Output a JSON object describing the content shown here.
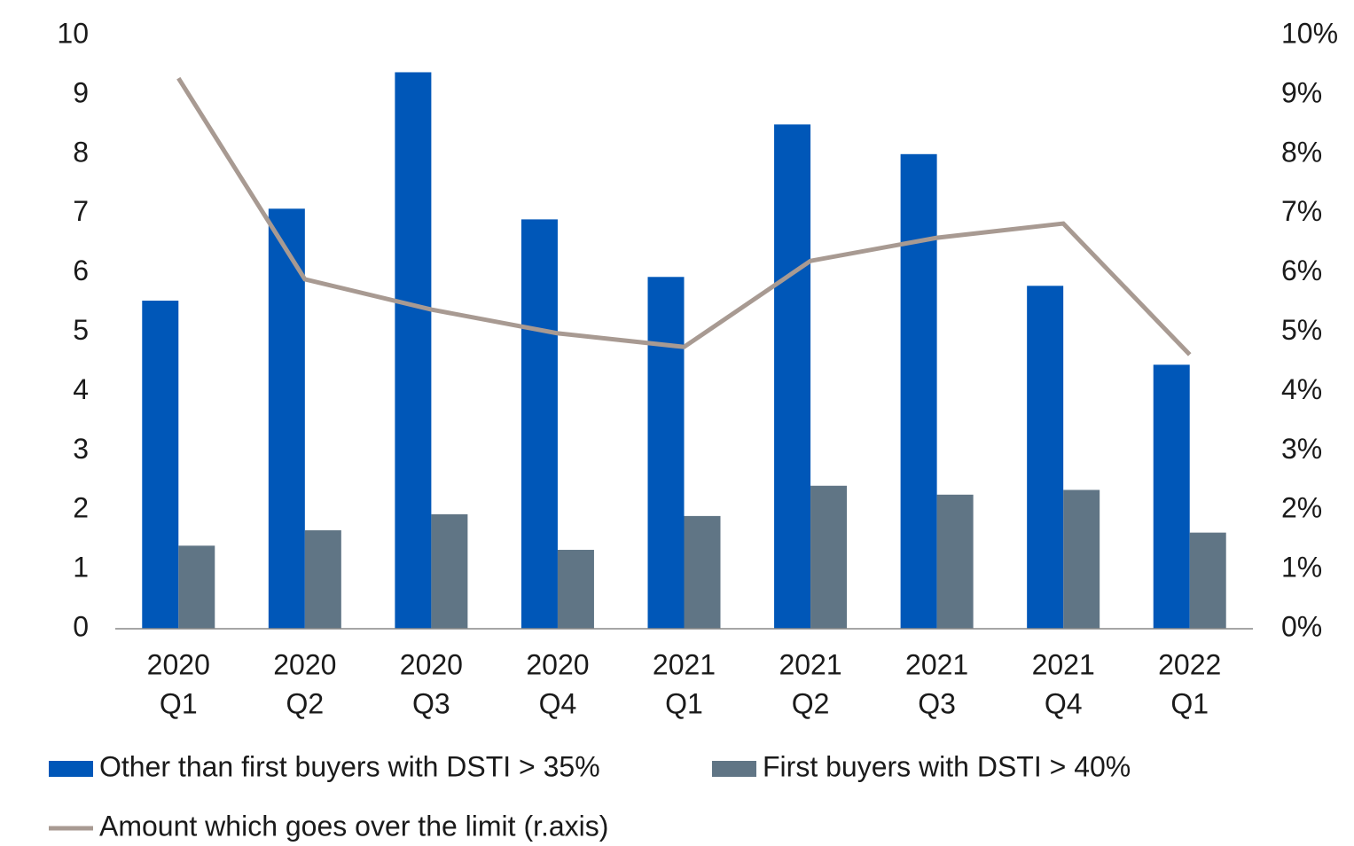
{
  "chart_data": {
    "type": "bar_line",
    "categories": [
      [
        "2020",
        "Q1"
      ],
      [
        "2020",
        "Q2"
      ],
      [
        "2020",
        "Q3"
      ],
      [
        "2020",
        "Q4"
      ],
      [
        "2021",
        "Q1"
      ],
      [
        "2021",
        "Q2"
      ],
      [
        "2021",
        "Q3"
      ],
      [
        "2021",
        "Q4"
      ],
      [
        "2022",
        "Q1"
      ]
    ],
    "series": [
      {
        "name": "Other than first buyers with DSTI > 35%",
        "color": "#0057b8",
        "type": "bar",
        "values": [
          5.53,
          7.08,
          9.38,
          6.9,
          5.93,
          8.5,
          8.0,
          5.78,
          4.45
        ]
      },
      {
        "name": "First buyers with DSTI > 40%",
        "color": "#607585",
        "type": "bar",
        "values": [
          1.4,
          1.66,
          1.93,
          1.33,
          1.9,
          2.41,
          2.26,
          2.34,
          1.62
        ]
      },
      {
        "name": "Amount which goes over the limit (r.axis)",
        "color": "#a89a92",
        "type": "line",
        "axis": "y2",
        "values": [
          9.28,
          5.89,
          5.38,
          4.98,
          4.75,
          6.2,
          6.59,
          6.83,
          4.62
        ]
      }
    ],
    "ylim": [
      0,
      10
    ],
    "yticks": [
      0,
      1,
      2,
      3,
      4,
      5,
      6,
      7,
      8,
      9,
      10
    ],
    "y2lim": [
      0,
      10
    ],
    "y2ticks": [
      {
        "value": 0,
        "label": "0%"
      },
      {
        "value": 1,
        "label": "1%"
      },
      {
        "value": 2,
        "label": "2%"
      },
      {
        "value": 3,
        "label": "3%"
      },
      {
        "value": 4,
        "label": "4%"
      },
      {
        "value": 5,
        "label": "5%"
      },
      {
        "value": 6,
        "label": "6%"
      },
      {
        "value": 7,
        "label": "7%"
      },
      {
        "value": 8,
        "label": "8%"
      },
      {
        "value": 9,
        "label": "9%"
      },
      {
        "value": 10,
        "label": "10%"
      }
    ]
  }
}
